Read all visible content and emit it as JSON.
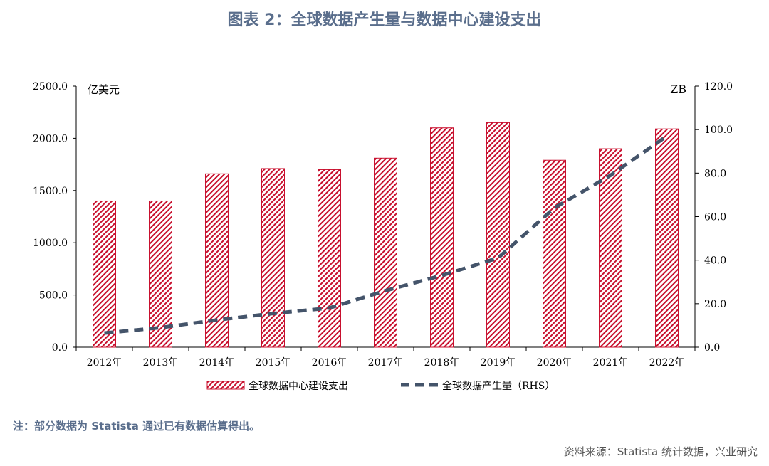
{
  "title": "图表 2：全球数据产生量与数据中心建设支出",
  "note": "注：部分数据为 Statista 通过已有数据估算得出。",
  "source": "资料来源：Statista 统计数据，兴业研究",
  "colors": {
    "bar": "#c8102e",
    "line": "#44546a",
    "title": "#5a6e8c"
  },
  "chart_data": {
    "type": "bar",
    "categories": [
      "2012年",
      "2013年",
      "2014年",
      "2015年",
      "2016年",
      "2017年",
      "2018年",
      "2019年",
      "2020年",
      "2021年",
      "2022年"
    ],
    "ylabel": "亿美元",
    "y2label": "ZB",
    "ylim": [
      0,
      2500
    ],
    "y2lim": [
      0,
      120
    ],
    "yticks": [
      "0.0",
      "500.0",
      "1000.0",
      "1500.0",
      "2000.0",
      "2500.0"
    ],
    "y2ticks": [
      "0.0",
      "20.0",
      "40.0",
      "60.0",
      "80.0",
      "100.0",
      "120.0"
    ],
    "legend_position": "bottom",
    "series": [
      {
        "name": "全球数据中心建设支出",
        "type": "bar",
        "axis": "left",
        "values": [
          1400,
          1400,
          1660,
          1710,
          1700,
          1810,
          2100,
          2150,
          1790,
          1900,
          2090
        ]
      },
      {
        "name": "全球数据产生量（RHS）",
        "type": "line",
        "style": "dashed",
        "axis": "right",
        "values": [
          6.5,
          9,
          12.5,
          15.5,
          18,
          26,
          33,
          41,
          64,
          79,
          97
        ]
      }
    ]
  }
}
